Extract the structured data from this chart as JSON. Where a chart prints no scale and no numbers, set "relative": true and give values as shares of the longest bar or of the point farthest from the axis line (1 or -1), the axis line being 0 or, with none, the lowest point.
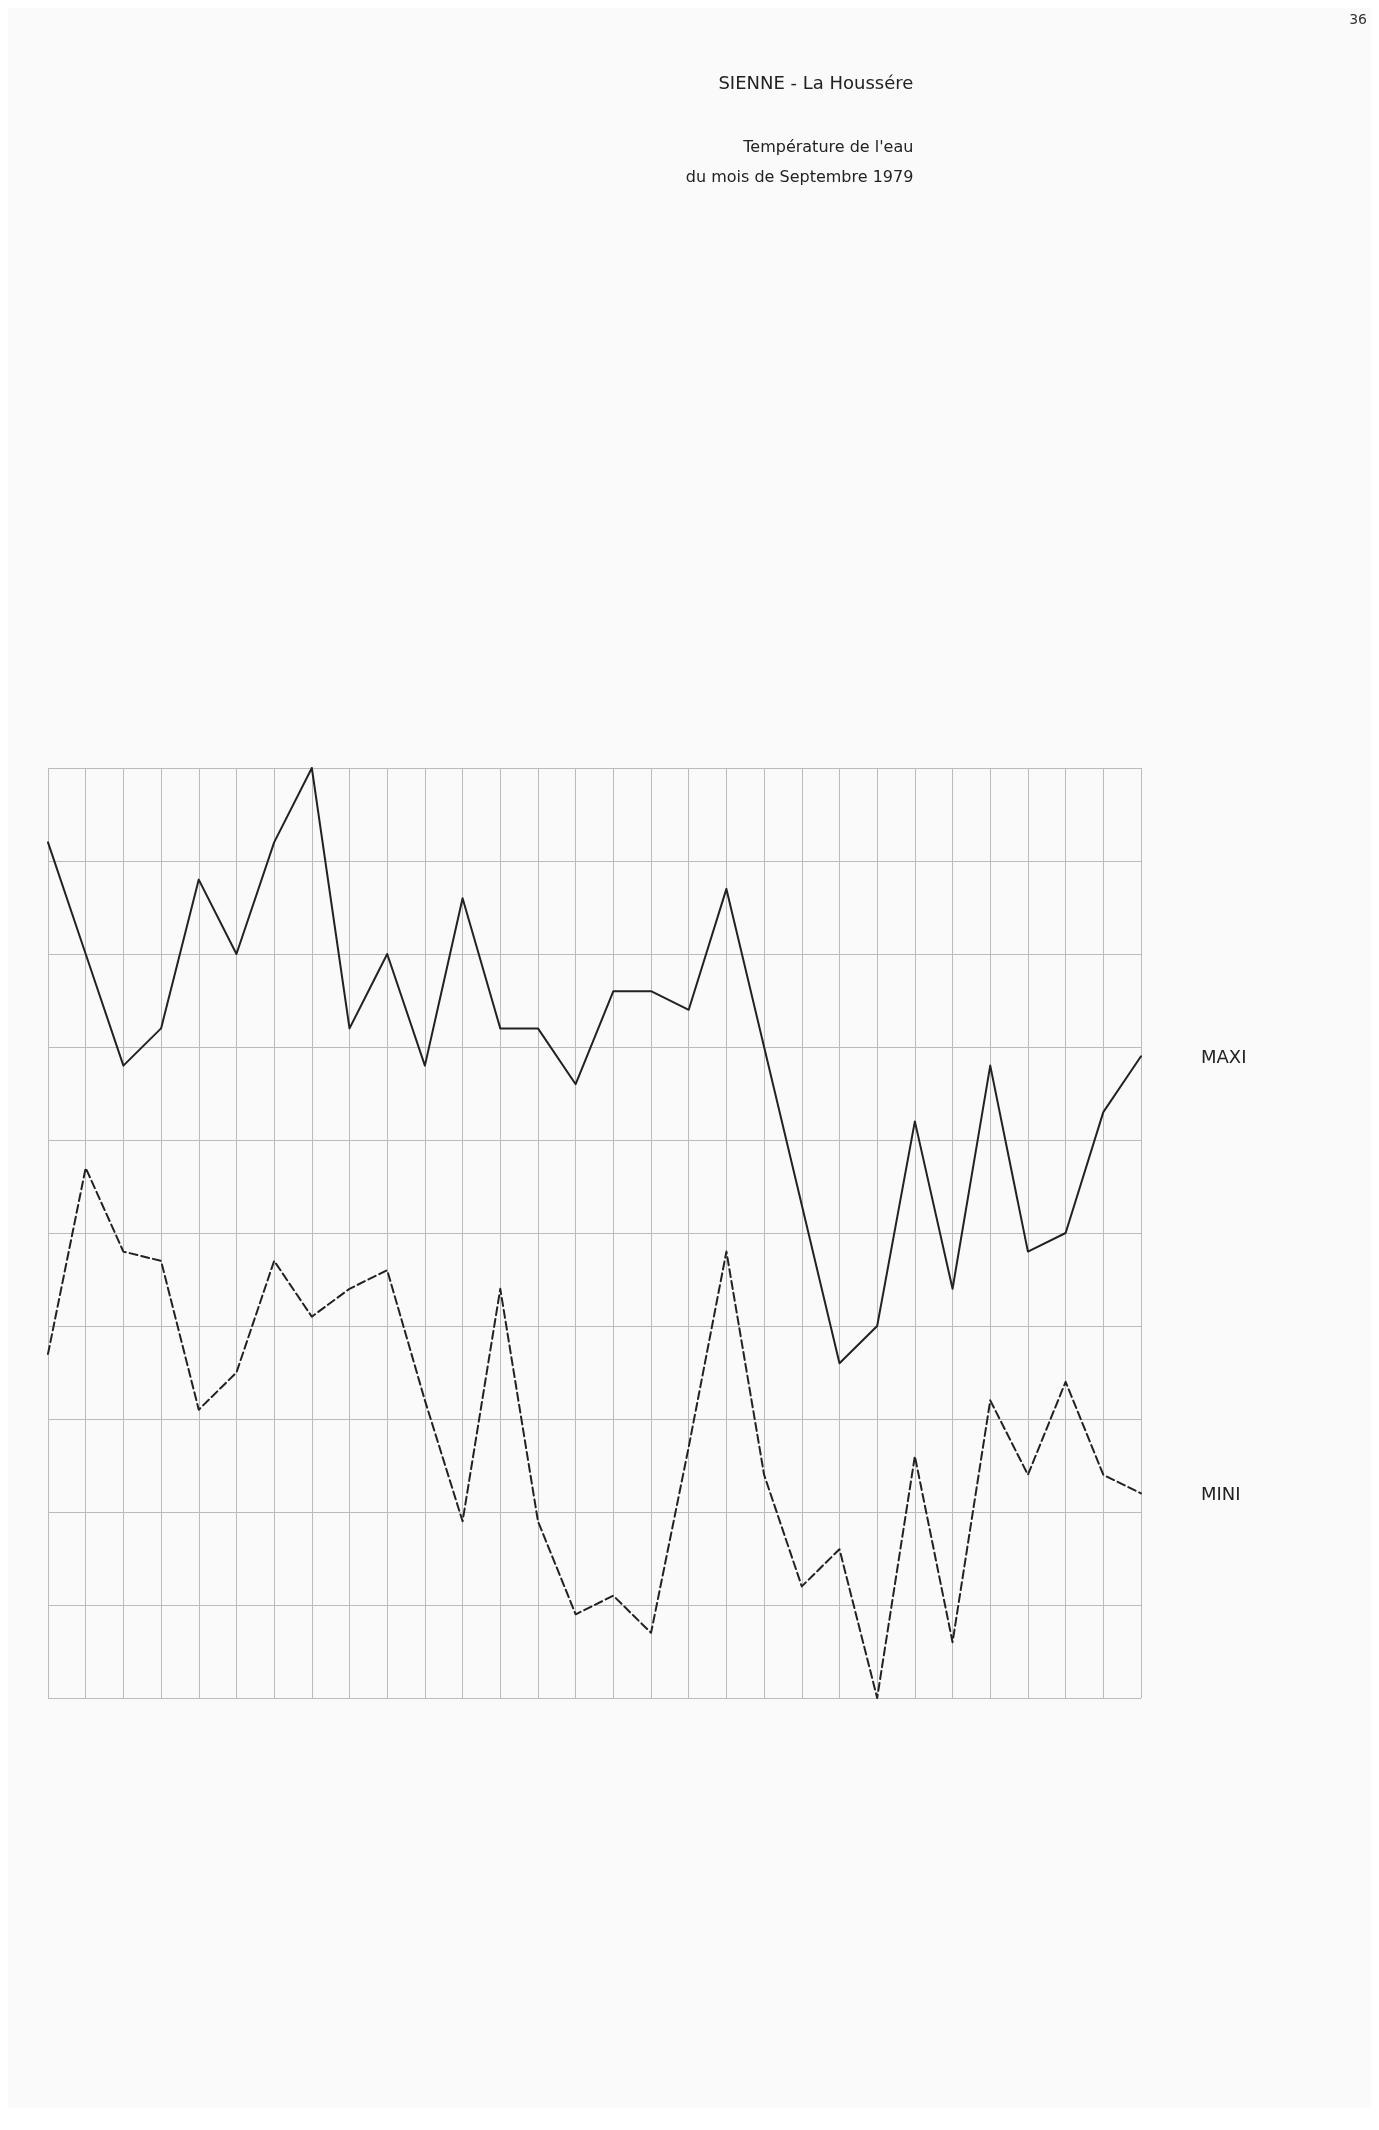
{
  "chart_data": {
    "type": "line",
    "title": "SIENNE - La Houssére",
    "subtitle": "Température de l'eau\ndu mois de Septembre 1979",
    "annotations": [
      "36"
    ],
    "relative": true,
    "grid": true,
    "legend": false,
    "marker": "none",
    "categories": [
      null,
      null,
      null,
      null,
      null,
      null,
      null,
      null,
      null,
      null,
      null,
      null,
      null,
      null,
      null,
      null,
      null,
      null,
      null,
      null,
      null,
      null,
      null,
      null,
      null,
      null,
      null,
      null,
      null,
      null
    ],
    "series": [
      {
        "name": "MAXI",
        "color": "#222222",
        "line_style": "solid",
        "values": [
          0.92,
          0.8,
          0.68,
          0.72,
          0.88,
          0.8,
          0.92,
          1.0,
          0.72,
          0.8,
          0.68,
          0.86,
          0.72,
          0.72,
          0.66,
          0.76,
          0.76,
          0.74,
          0.87,
          0.7,
          0.53,
          0.36,
          0.4,
          0.62,
          0.44,
          0.68,
          0.48,
          0.5,
          0.63,
          0.69
        ]
      },
      {
        "name": "MINI",
        "color": "#222222",
        "line_style": "dashed",
        "values": [
          0.37,
          0.57,
          0.48,
          0.47,
          0.31,
          0.35,
          0.47,
          0.41,
          0.44,
          0.46,
          0.32,
          0.19,
          0.44,
          0.19,
          0.09,
          0.11,
          0.07,
          0.27,
          0.48,
          0.24,
          0.12,
          0.16,
          0,
          0.26,
          0.06,
          0.32,
          0.24,
          0.34,
          0.24,
          0.22
        ]
      }
    ]
  }
}
